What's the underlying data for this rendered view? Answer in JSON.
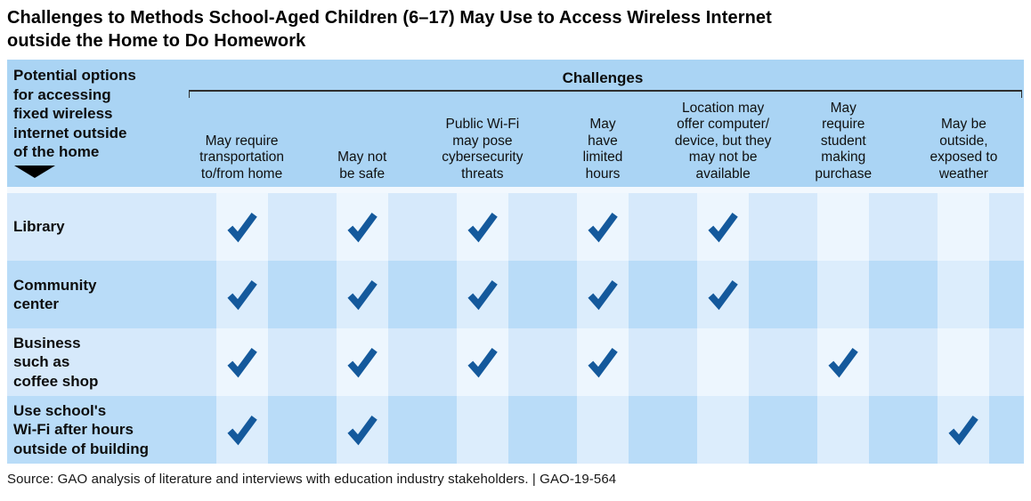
{
  "title": "Challenges to Methods School-Aged Children (6–17) May Use to Access Wireless Internet\noutside the Home to Do Homework",
  "table": {
    "row_header": "Potential options\nfor accessing\nfixed wireless\ninternet outside\nof the home",
    "row_header_icon": "down-triangle-icon",
    "group_header": "Challenges",
    "columns": [
      "May require\ntransportation\nto/from home",
      "May not\nbe safe",
      "Public Wi-Fi\nmay pose\ncybersecurity\nthreats",
      "May\nhave\nlimited\nhours",
      "Location may\noffer computer/\ndevice, but they\nmay not be\navailable",
      "May\nrequire\nstudent\nmaking\npurchase",
      "May be\noutside,\nexposed to\nweather"
    ],
    "rows": [
      {
        "label": "Library",
        "checks": [
          true,
          true,
          true,
          true,
          true,
          false,
          false
        ]
      },
      {
        "label": "Community\ncenter",
        "checks": [
          true,
          true,
          true,
          true,
          true,
          false,
          false
        ]
      },
      {
        "label": "Business\nsuch as\ncoffee shop",
        "checks": [
          true,
          true,
          true,
          true,
          false,
          true,
          false
        ]
      },
      {
        "label": "Use school's\nWi-Fi after hours\noutside of building",
        "checks": [
          true,
          true,
          false,
          false,
          false,
          false,
          true
        ]
      }
    ]
  },
  "source": "Source: GAO analysis of literature and interviews with education industry stakeholders.  |  GAO-19-564",
  "chart_data": {
    "type": "table",
    "title": "Challenges to Methods School-Aged Children (6–17) May Use to Access Wireless Internet outside the Home to Do Homework",
    "row_axis_label": "Potential options for accessing fixed wireless internet outside of the home",
    "column_group_label": "Challenges",
    "categories": [
      "May require transportation to/from home",
      "May not be safe",
      "Public Wi-Fi may pose cybersecurity threats",
      "May have limited hours",
      "Location may offer computer/device, but they may not be available",
      "May require student making purchase",
      "May be outside, exposed to weather"
    ],
    "series": [
      {
        "name": "Library",
        "values": [
          1,
          1,
          1,
          1,
          1,
          0,
          0
        ]
      },
      {
        "name": "Community center",
        "values": [
          1,
          1,
          1,
          1,
          1,
          0,
          0
        ]
      },
      {
        "name": "Business such as coffee shop",
        "values": [
          1,
          1,
          1,
          1,
          0,
          1,
          0
        ]
      },
      {
        "name": "Use school's Wi-Fi after hours outside of building",
        "values": [
          1,
          1,
          0,
          0,
          0,
          0,
          1
        ]
      }
    ],
    "legend_position": "none",
    "grid": "checkerboard shading, check mark = challenge applies"
  },
  "colors": {
    "header_bg": "#aad4f4",
    "row_light_bg": "#d6e9fb",
    "row_light_cell": "#edf6fe",
    "row_dark_bg": "#b9dcf8",
    "row_dark_cell": "#dcedfc",
    "check": "#14599c",
    "bracket": "#2f2f2f"
  }
}
